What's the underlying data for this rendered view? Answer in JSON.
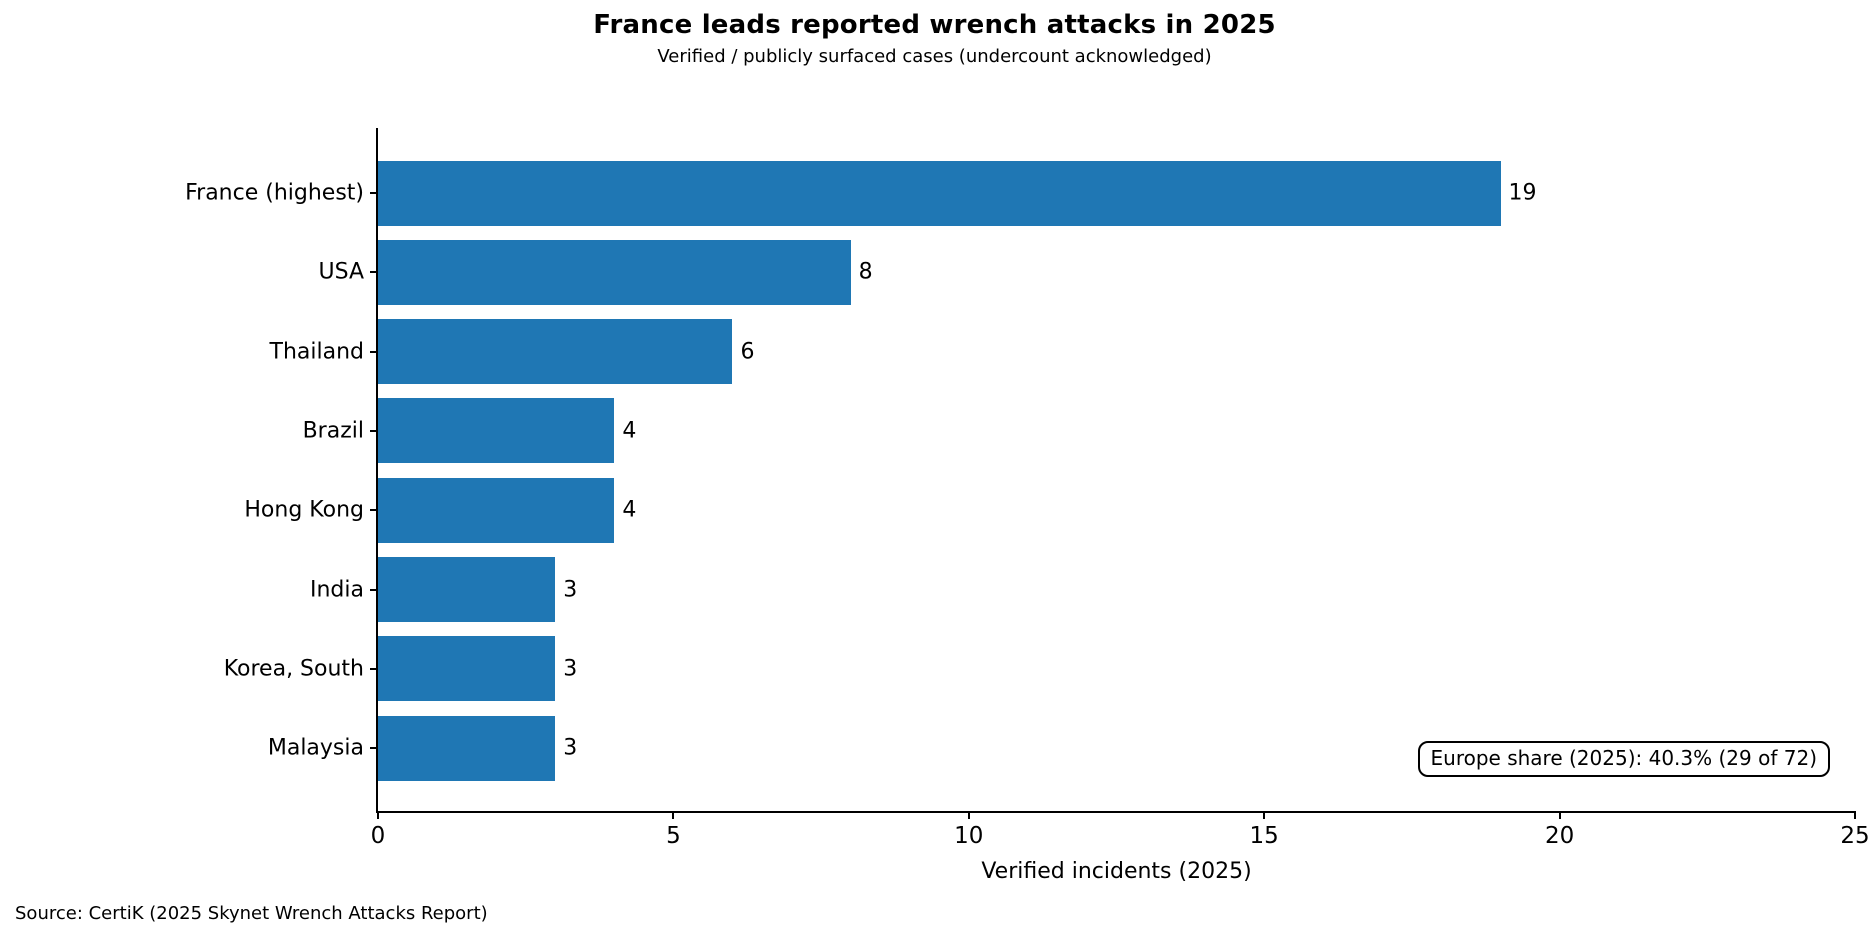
{
  "header": {
    "title": "France leads reported wrench attacks in 2025",
    "subtitle": "Verified / publicly surfaced cases (undercount acknowledged)"
  },
  "chart_data": {
    "type": "bar",
    "orientation": "horizontal",
    "title": "France leads reported wrench attacks in 2025",
    "subtitle": "Verified / publicly surfaced cases (undercount acknowledged)",
    "categories": [
      "France (highest)",
      "USA",
      "Thailand",
      "Brazil",
      "Hong Kong",
      "India",
      "Korea, South",
      "Malaysia"
    ],
    "values": [
      19,
      8,
      6,
      4,
      4,
      3,
      3,
      3
    ],
    "value_labels": [
      "19",
      "8",
      "6",
      "4",
      "4",
      "3",
      "3",
      "3"
    ],
    "xlabel": "Verified incidents (2025)",
    "ylabel": "",
    "xlim": [
      0,
      25
    ],
    "xticks": [
      0,
      5,
      10,
      15,
      20,
      25
    ],
    "grid": false,
    "legend": null,
    "bar_color": "#1f77b4",
    "annotation": "Europe share (2025): 40.3% (29 of 72)"
  },
  "footer": {
    "source": "Source: CertiK (2025 Skynet Wrench Attacks Report)"
  }
}
